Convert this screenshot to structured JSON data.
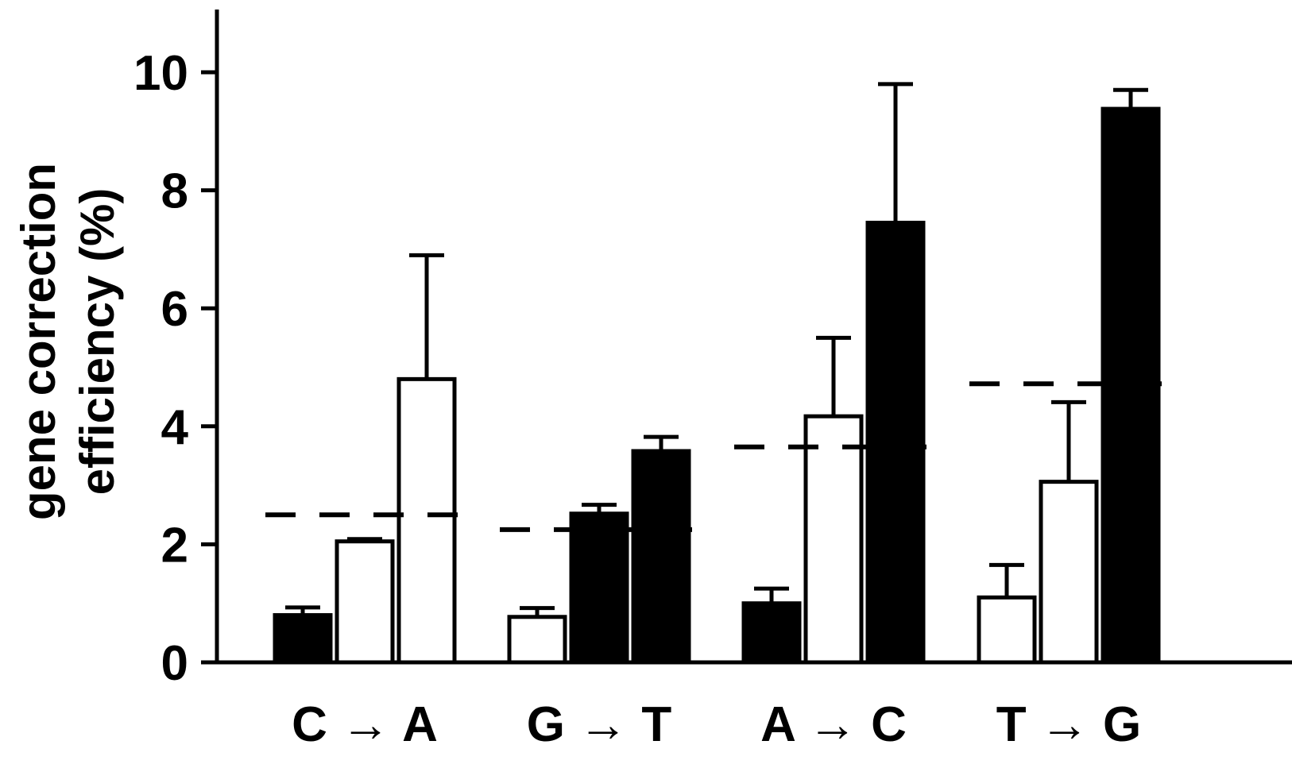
{
  "chart_data": {
    "type": "bar",
    "title": "",
    "xlabel": "",
    "ylabel_lines": [
      "gene correction",
      "efficiency (%)"
    ],
    "ylim": [
      0,
      11
    ],
    "yticks": [
      0,
      2,
      4,
      6,
      8,
      10
    ],
    "ytick_labels": [
      "0",
      "2",
      "4",
      "6",
      "8",
      "10"
    ],
    "grid": false,
    "legend": "none",
    "categories": [
      "C → A",
      "G → T",
      "A → C",
      "T → G"
    ],
    "groups": [
      {
        "category": "C → A",
        "bars": [
          {
            "value": 0.8,
            "error": 0.13,
            "fill": "filled"
          },
          {
            "value": 2.05,
            "error": 0.04,
            "fill": "open"
          },
          {
            "value": 4.8,
            "error": 2.1,
            "fill": "open"
          }
        ],
        "dashed_line": 2.5
      },
      {
        "category": "G → T",
        "bars": [
          {
            "value": 0.77,
            "error": 0.15,
            "fill": "open"
          },
          {
            "value": 2.52,
            "error": 0.15,
            "fill": "filled"
          },
          {
            "value": 3.58,
            "error": 0.24,
            "fill": "filled"
          }
        ],
        "dashed_line": 2.25
      },
      {
        "category": "A → C",
        "bars": [
          {
            "value": 1.0,
            "error": 0.25,
            "fill": "filled"
          },
          {
            "value": 4.17,
            "error": 1.33,
            "fill": "open"
          },
          {
            "value": 7.45,
            "error": 2.35,
            "fill": "filled"
          }
        ],
        "dashed_line": 3.65
      },
      {
        "category": "T → G",
        "bars": [
          {
            "value": 1.1,
            "error": 0.55,
            "fill": "open"
          },
          {
            "value": 3.06,
            "error": 1.35,
            "fill": "open"
          },
          {
            "value": 9.38,
            "error": 0.32,
            "fill": "filled"
          }
        ],
        "dashed_line": 4.72
      }
    ],
    "colors": {
      "bar_stroke": "#000000",
      "filled": "#000000",
      "open": "#ffffff"
    }
  }
}
